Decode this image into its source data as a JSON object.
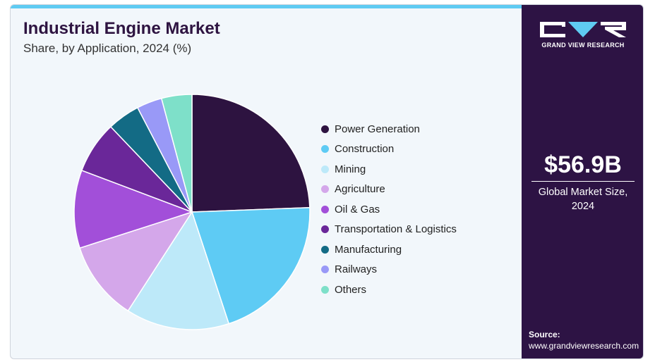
{
  "header": {
    "title": "Industrial Engine Market",
    "subtitle": "Share, by Application, 2024 (%)"
  },
  "chart_data": {
    "type": "pie",
    "title": "Industrial Engine Market",
    "subtitle": "Share, by Application, 2024 (%)",
    "categories": [
      "Power Generation",
      "Construction",
      "Mining",
      "Agriculture",
      "Oil & Gas",
      "Transportation & Logistics",
      "Manufacturing",
      "Railways",
      "Others"
    ],
    "values": [
      24.6,
      20.7,
      14.3,
      11.0,
      10.8,
      7.2,
      4.5,
      3.5,
      4.2
    ],
    "colors": [
      "#2d1340",
      "#5ecbf4",
      "#bde9f9",
      "#d4a7ea",
      "#a24fd9",
      "#6a2799",
      "#136b85",
      "#9999f7",
      "#7ee0c9"
    ],
    "legend_position": "right"
  },
  "legend": {
    "items": [
      {
        "label": "Power Generation",
        "color": "#2d1340"
      },
      {
        "label": "Construction",
        "color": "#5ecbf4"
      },
      {
        "label": "Mining",
        "color": "#bde9f9"
      },
      {
        "label": "Agriculture",
        "color": "#d4a7ea"
      },
      {
        "label": "Oil & Gas",
        "color": "#a24fd9"
      },
      {
        "label": "Transportation & Logistics",
        "color": "#6a2799"
      },
      {
        "label": "Manufacturing",
        "color": "#136b85"
      },
      {
        "label": "Railways",
        "color": "#9999f7"
      },
      {
        "label": "Others",
        "color": "#7ee0c9"
      }
    ]
  },
  "side_panel": {
    "logo_text": "GRAND VIEW RESEARCH",
    "market_size": "$56.9B",
    "market_label": "Global Market Size, 2024",
    "source_label": "Source:",
    "source_url": "www.grandviewresearch.com"
  },
  "colors": {
    "accent_bar": "#5fcbf2",
    "panel_bg": "#2d1344",
    "card_bg": "#f2f7fb",
    "title": "#2e1441"
  }
}
